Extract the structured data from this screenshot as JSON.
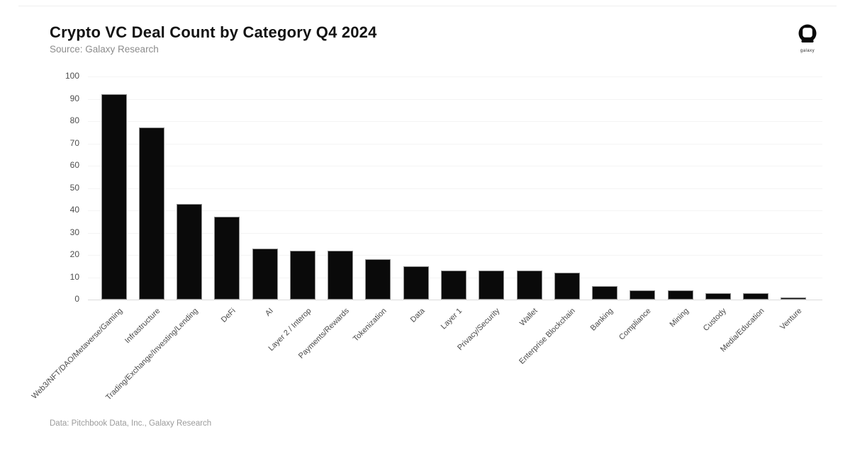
{
  "header": {
    "title": "Crypto VC Deal Count by Category Q4 2024",
    "source": "Source: Galaxy Research",
    "logo_label": "galaxy"
  },
  "footer": {
    "credit": "Data: Pitchbook Data, Inc., Galaxy Research"
  },
  "colors": {
    "bar": "#0a0a0a",
    "title_text": "#131313",
    "subtitle_text": "#8c8c8c",
    "tick_text": "#4d4d4d",
    "gridline": "#f4f4f4",
    "baseline": "#dcdcdc",
    "footer_text": "#9b9b9b",
    "background": "#ffffff"
  },
  "chart_data": {
    "type": "bar",
    "title": "Crypto VC Deal Count by Category Q4 2024",
    "xlabel": "",
    "ylabel": "",
    "categories": [
      "Web3/NFT/DAO/Metaverse/Gaming",
      "Infrastructure",
      "Trading/Exchange/Investing/Lending",
      "DeFi",
      "AI",
      "Layer 2 / Interop",
      "Payments/Rewards",
      "Tokenization",
      "Data",
      "Layer 1",
      "Privacy/Security",
      "Wallet",
      "Enterprise Blockchain",
      "Banking",
      "Compliance",
      "Mining",
      "Custody",
      "Media/Education",
      "Venture"
    ],
    "values": [
      92,
      77,
      43,
      37,
      23,
      22,
      22,
      18,
      15,
      13,
      13,
      13,
      12,
      6,
      4,
      4,
      3,
      3,
      1
    ],
    "ylim": [
      0,
      100
    ],
    "yticks": [
      0,
      10,
      20,
      30,
      40,
      50,
      60,
      70,
      80,
      90,
      100
    ],
    "grid": "faint horizontal gridlines",
    "legend": "none",
    "bar_color": "#0a0a0a",
    "x_label_rotation_deg": 45
  }
}
